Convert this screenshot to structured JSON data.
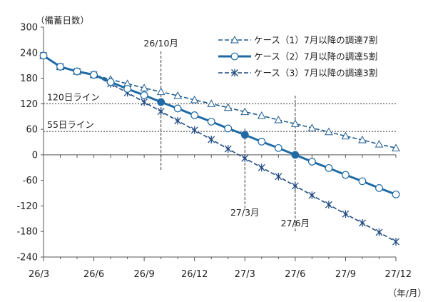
{
  "chart_data": {
    "type": "line",
    "ylabel": "（備蓄日数）",
    "xlabel": "（年/月）",
    "ylim": [
      -240,
      300
    ],
    "yticks": [
      300,
      240,
      180,
      120,
      60,
      0,
      -60,
      -120,
      -180,
      -240
    ],
    "x_tick_labels": [
      "26/3",
      "26/6",
      "26/9",
      "26/12",
      "27/3",
      "27/6",
      "27/9",
      "27/12"
    ],
    "x_months": [
      "26/3",
      "26/4",
      "26/5",
      "26/6",
      "26/7",
      "26/8",
      "26/9",
      "26/10",
      "26/11",
      "26/12",
      "27/1",
      "27/2",
      "27/3",
      "27/4",
      "27/5",
      "27/6",
      "27/7",
      "27/8",
      "27/9",
      "27/10",
      "27/11",
      "27/12"
    ],
    "grid": false,
    "legend_position": "top-right",
    "series": [
      {
        "name": "ケース（1）7月以降の調達7割",
        "color": "#1f5c8f",
        "style": "dash",
        "marker": "triangle",
        "values": [
          233,
          207,
          196,
          188,
          177,
          167,
          157,
          148,
          139,
          129,
          120,
          111,
          101,
          92,
          82,
          73,
          63,
          54,
          44,
          35,
          25,
          16
        ]
      },
      {
        "name": "ケース（2）7月以降の調達5割",
        "color": "#1f6aa5",
        "style": "solid",
        "marker": "circle",
        "values": [
          233,
          207,
          196,
          188,
          171,
          155,
          140,
          124,
          109,
          93,
          78,
          62,
          47,
          31,
          16,
          0,
          -16,
          -31,
          -47,
          -62,
          -78,
          -93
        ]
      },
      {
        "name": "ケース（3）7月以降の調達3割",
        "color": "#1f4a80",
        "style": "dash",
        "marker": "asterisk",
        "values": [
          233,
          207,
          196,
          188,
          167,
          146,
          124,
          102,
          80,
          58,
          36,
          14,
          -8,
          -30,
          -51,
          -73,
          -95,
          -117,
          -139,
          -160,
          -182,
          -204
        ]
      }
    ],
    "reference_lines": [
      {
        "label": "120日ライン",
        "value": 120
      },
      {
        "label": "55日ライン",
        "value": 55
      }
    ],
    "annotations": [
      {
        "label": "26/10月",
        "x_index": 7
      },
      {
        "label": "27/3月",
        "x_index": 12
      },
      {
        "label": "27/6月",
        "x_index": 15
      }
    ]
  }
}
